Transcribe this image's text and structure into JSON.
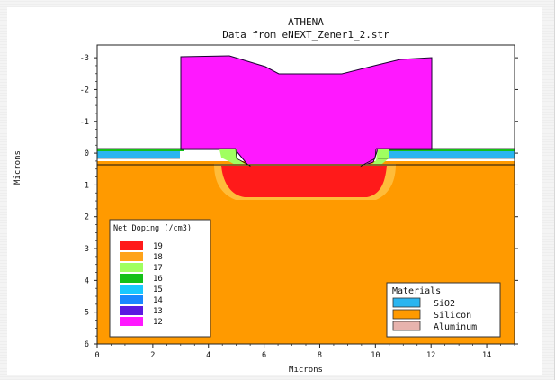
{
  "header": {
    "title": "ATHENA",
    "subtitle": "Data from eNEXT_Zener1_2.str"
  },
  "axes": {
    "xlabel": "Microns",
    "ylabel": "Microns",
    "x_ticks": [
      "0",
      "2",
      "4",
      "6",
      "8",
      "10",
      "12",
      "14"
    ],
    "y_ticks": [
      "-3",
      "-2",
      "-1",
      "0",
      "1",
      "2",
      "3",
      "4",
      "5",
      "6"
    ],
    "xlim": [
      0,
      15
    ],
    "ylim": [
      6,
      -3.4
    ]
  },
  "doping_legend": {
    "title": "Net Doping (/cm3)",
    "entries": [
      {
        "label": "19",
        "color": "#ff1a1a"
      },
      {
        "label": "18",
        "color": "#ffa31a"
      },
      {
        "label": "17",
        "color": "#a0ff60"
      },
      {
        "label": "16",
        "color": "#14c018"
      },
      {
        "label": "15",
        "color": "#19c8ff"
      },
      {
        "label": "14",
        "color": "#1888ff"
      },
      {
        "label": "13",
        "color": "#5a1ae0"
      },
      {
        "label": "12",
        "color": "#ff18ff"
      }
    ]
  },
  "materials_legend": {
    "title": "Materials",
    "entries": [
      {
        "label": "SiO2",
        "color": "#2ab5f0"
      },
      {
        "label": "Silicon",
        "color": "#ff9a00"
      },
      {
        "label": "Aluminum",
        "color": "#e7b3ad"
      }
    ]
  },
  "colors": {
    "silicon": "#ff9a00",
    "oxide": "#2ab5f0",
    "magenta": "#ff18ff",
    "red": "#ff1a1a"
  }
}
